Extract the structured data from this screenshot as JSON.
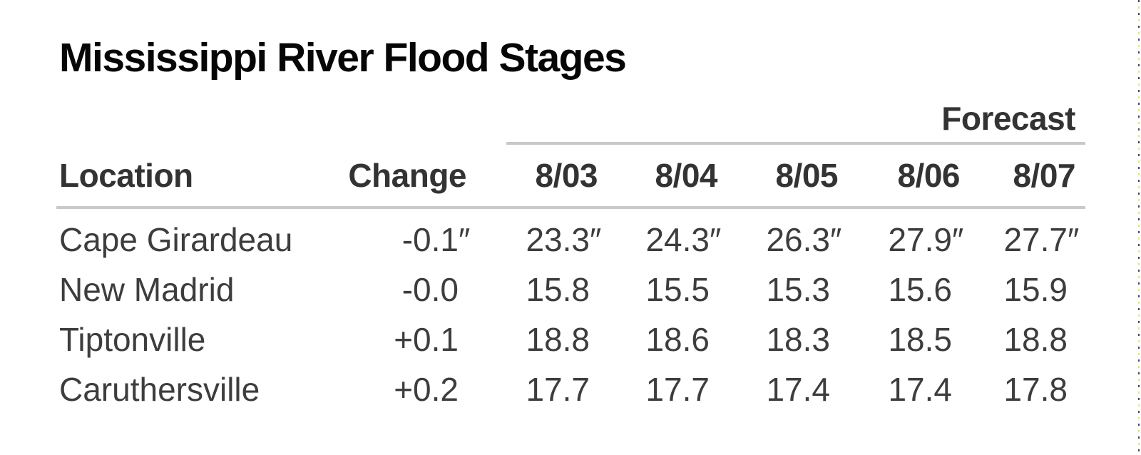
{
  "title": "Mississippi River Flood Stages",
  "forecast_label": "Forecast",
  "chart_data": {
    "type": "table",
    "title": "Mississippi River Flood Stages",
    "group_header": {
      "label": "Forecast",
      "spans_columns": [
        "8/03",
        "8/04",
        "8/05",
        "8/06",
        "8/07"
      ]
    },
    "columns": [
      "Location",
      "Change",
      "8/03",
      "8/04",
      "8/05",
      "8/06",
      "8/07"
    ],
    "rows": [
      {
        "location": "Cape Girardeau",
        "change": {
          "v": "-0.1",
          "u": "″"
        },
        "values": [
          {
            "v": "23.3",
            "u": "″"
          },
          {
            "v": "24.3",
            "u": "″"
          },
          {
            "v": "26.3",
            "u": "″"
          },
          {
            "v": "27.9",
            "u": "″"
          },
          {
            "v": "27.7",
            "u": "″"
          }
        ]
      },
      {
        "location": "New Madrid",
        "change": {
          "v": "-0.0",
          "u": ""
        },
        "values": [
          {
            "v": "15.8",
            "u": ""
          },
          {
            "v": "15.5",
            "u": ""
          },
          {
            "v": "15.3",
            "u": ""
          },
          {
            "v": "15.6",
            "u": ""
          },
          {
            "v": "15.9",
            "u": ""
          }
        ]
      },
      {
        "location": "Tiptonville",
        "change": {
          "v": "+0.1",
          "u": ""
        },
        "values": [
          {
            "v": "18.8",
            "u": ""
          },
          {
            "v": "18.6",
            "u": ""
          },
          {
            "v": "18.3",
            "u": ""
          },
          {
            "v": "18.5",
            "u": ""
          },
          {
            "v": "18.8",
            "u": ""
          }
        ]
      },
      {
        "location": "Caruthersville",
        "change": {
          "v": "+0.2",
          "u": ""
        },
        "values": [
          {
            "v": "17.7",
            "u": ""
          },
          {
            "v": "17.7",
            "u": ""
          },
          {
            "v": "17.4",
            "u": ""
          },
          {
            "v": "17.4",
            "u": ""
          },
          {
            "v": "17.8",
            "u": ""
          }
        ]
      }
    ]
  },
  "colors": {
    "background": "#ffffff",
    "title_text": "#060606",
    "header_text": "#333333",
    "body_text": "#3d3d3d",
    "rule": "#c9c9c9",
    "edge_dash_dark": "#4a4a4a",
    "edge_dash_yellow": "#ebe85a"
  }
}
